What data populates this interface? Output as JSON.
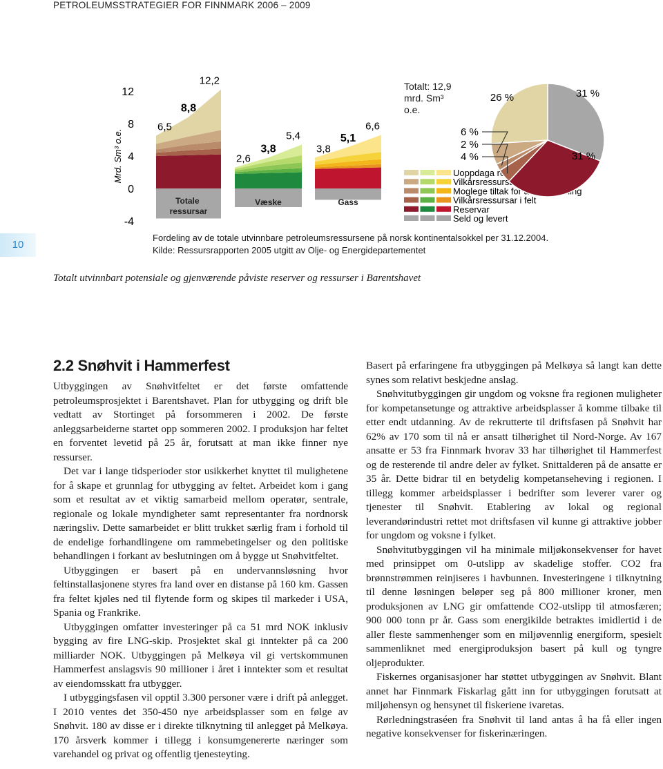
{
  "header": "PETROLEUMSSTRATEGIER FOR FINNMARK 2006 – 2009",
  "page_number": "10",
  "chart_data": [
    {
      "type": "area",
      "y_label": "Mrd. Sm³ o.e.",
      "ylim": [
        -4,
        12
      ],
      "yticks": [
        12,
        8,
        4,
        0,
        -4
      ],
      "total_label": "Totalt: 12,9 mrd. Sm³ o.e.",
      "legend": [
        "Uoppdaga ressursar",
        "Vilkårsressursar i funn",
        "Moglege tiltak for auka utvinning",
        "Vilkårsressursar i felt",
        "Reservar",
        "Seld og levert"
      ],
      "groups": [
        {
          "name": "Totale ressursar",
          "totals": [
            6.5,
            8.8,
            12.2
          ],
          "value_labels": [
            "6,5",
            "8,8",
            "12,2"
          ],
          "layers": [
            {
              "color": "#e1d4a5",
              "values": [
                1.0,
                2.4,
                5.0
              ]
            },
            {
              "color": "#cba983",
              "values": [
                0.7,
                1.0,
                1.4
              ]
            },
            {
              "color": "#b98b6b",
              "values": [
                0.4,
                0.7,
                0.9
              ]
            },
            {
              "color": "#a6624b",
              "values": [
                0.4,
                0.6,
                0.7
              ]
            },
            {
              "color": "#8c1a2c",
              "values": [
                4.0,
                4.1,
                4.2
              ]
            },
            {
              "color": "#a7a7a7",
              "values": [
                -3.7,
                -3.7,
                -3.7
              ]
            }
          ]
        },
        {
          "name": "Væske",
          "totals": [
            2.6,
            3.8,
            5.4
          ],
          "value_labels": [
            "2,6",
            "3,8",
            "5,4"
          ],
          "layers": [
            {
              "color": "#d8ec98",
              "values": [
                0.2,
                0.5,
                1.3
              ]
            },
            {
              "color": "#b5da6b",
              "values": [
                0.2,
                0.5,
                0.9
              ]
            },
            {
              "color": "#8dc654",
              "values": [
                0.2,
                0.5,
                0.7
              ]
            },
            {
              "color": "#5bb143",
              "values": [
                0.2,
                0.4,
                0.5
              ]
            },
            {
              "color": "#1f8a3d",
              "values": [
                1.8,
                1.9,
                2.0
              ]
            },
            {
              "color": "#a7a7a7",
              "values": [
                -2.3,
                -2.3,
                -2.3
              ]
            }
          ]
        },
        {
          "name": "Gass",
          "totals": [
            3.8,
            5.1,
            6.6
          ],
          "value_labels": [
            "3,8",
            "5,1",
            "6,6"
          ],
          "layers": [
            {
              "color": "#fbe48a",
              "values": [
                0.5,
                1.1,
                2.1
              ]
            },
            {
              "color": "#f6d23b",
              "values": [
                0.4,
                0.7,
                0.9
              ]
            },
            {
              "color": "#f2b61b",
              "values": [
                0.3,
                0.5,
                0.6
              ]
            },
            {
              "color": "#e8941f",
              "values": [
                0.2,
                0.3,
                0.4
              ]
            },
            {
              "color": "#c0152f",
              "values": [
                2.4,
                2.5,
                2.6
              ]
            },
            {
              "color": "#a7a7a7",
              "values": [
                -1.4,
                -1.4,
                -1.4
              ]
            }
          ]
        }
      ]
    },
    {
      "type": "pie",
      "values": [
        26,
        6,
        2,
        4,
        31,
        31
      ],
      "value_labels": [
        "26 %",
        "6 %",
        "2 %",
        "4 %",
        "31 %",
        "31 %"
      ],
      "colors": [
        "#e1d4a5",
        "#cba983",
        "#b98b6b",
        "#a6624b",
        "#8c1a2c",
        "#a7a7a7"
      ]
    }
  ],
  "caption": [
    "Fordeling av de totale utvinnbare petroleumsressursene på norsk kontinentalsokkel per 31.12.2004.",
    "Kilde: Ressursrapporten 2005 utgitt av Olje- og Energidepartementet"
  ],
  "figure_title": "Totalt utvinnbart potensiale og gjenværende påviste reserver og ressurser i Barentshavet",
  "section": {
    "heading": "2.2 Snøhvit i Hammerfest",
    "left_column": [
      "Utbyggingen av Snøhvitfeltet er det første omfattende petroleumsprosjektet i Barentshavet. Plan for utbygging og drift ble vedtatt av Stortinget på forsommeren i 2002. De første anleggsarbeiderne startet opp sommeren 2002. I produksjon har feltet en forventet levetid på 25 år, forutsatt at man ikke finner nye ressurser.",
      "Det var i lange tidsperioder stor usikkerhet knyttet til mulighetene for å skape et grunnlag for utbygging av feltet. Arbeidet kom i gang som et resultat av et viktig samarbeid mellom operatør, sentrale, regionale og lokale myndigheter samt representanter fra nordnorsk næringsliv. Dette samarbeidet er blitt trukket særlig fram i forhold til de endelige forhandlingene om rammebetingelser og den politiske behandlingen i forkant av beslutningen om å bygge ut Snøhvitfeltet.",
      "Utbyggingen er basert på en undervannsløsning hvor feltinstallasjonene styres fra land over en distanse på 160 km. Gassen fra feltet kjøles ned til flytende form og skipes til markeder i USA, Spania og Frankrike.",
      "Utbyggingen omfatter investeringer på ca 51 mrd NOK inklusiv bygging av fire LNG-skip. Prosjektet skal gi inntekter på ca 200 milliarder NOK. Utbyggingen på Melkøya vil gi vertskommunen Hammerfest anslagsvis 90 millioner i året i inntekter som et resultat av eiendomsskatt fra utbygger.",
      "I utbyggingsfasen vil opptil 3.300 personer være i drift på anlegget. I 2010 ventes det 350-450 nye arbeidsplasser som en følge av Snøhvit. 180 av disse er i direkte tilknytning til anlegget på Melkøya. 170 årsverk kommer i tillegg i konsumgenererte næringer som varehandel og privat og offentlig tjenesteyting."
    ],
    "right_column": [
      "Basert på erfaringene fra utbyggingen på Melkøya så langt kan dette synes som relativt beskjedne anslag.",
      "Snøhvitutbyggingen gir ungdom og voksne fra regionen muligheter for kompetansetunge og attraktive arbeidsplasser å komme tilbake til etter endt utdanning. Av de rekrutterte til driftsfasen på Snøhvit har 62% av 170 som til nå er ansatt tilhørighet til Nord-Norge. Av 167 ansatte er 53 fra Finnmark hvorav 33 har tilhørighet til Hammerfest og de resterende til andre deler av fylket. Snittalderen på de ansatte er 35 år. Dette bidrar til en betydelig kompetanseheving i regionen. I tillegg kommer arbeidsplasser i bedrifter som leverer varer og tjenester til Snøhvit. Etablering av lokal og regional leverandørindustri rettet mot driftsfasen vil kunne gi attraktive jobber for ungdom og voksne i fylket.",
      "Snøhvitutbyggingen vil ha minimale miljøkonsekvenser for havet med prinsippet om 0-utslipp av skadelige stoffer. CO2 fra brønnstrømmen reinjiseres i havbunnen. Investeringene i tilknytning til denne løsningen beløper seg på 800 millioner kroner, men produksjonen av LNG gir omfattende CO2-utslipp til atmosfæren; 900 000 tonn pr år. Gass som energikilde betraktes imidlertid i de aller fleste sammenhenger som en miljøvennlig energiform, spesielt sammenliknet med energiproduksjon basert på kull og tyngre oljeprodukter.",
      "Fiskernes organisasjoner har støttet utbyggingen av Snøhvit. Blant annet har Finnmark Fiskarlag gått inn for utbyggingen forutsatt at miljøhensyn og hensynet til fiskeriene ivaretas.",
      "Rørledningstraséen fra Snøhvit til land antas å ha få eller ingen negative konsekvenser for fiskerinæringen."
    ]
  }
}
